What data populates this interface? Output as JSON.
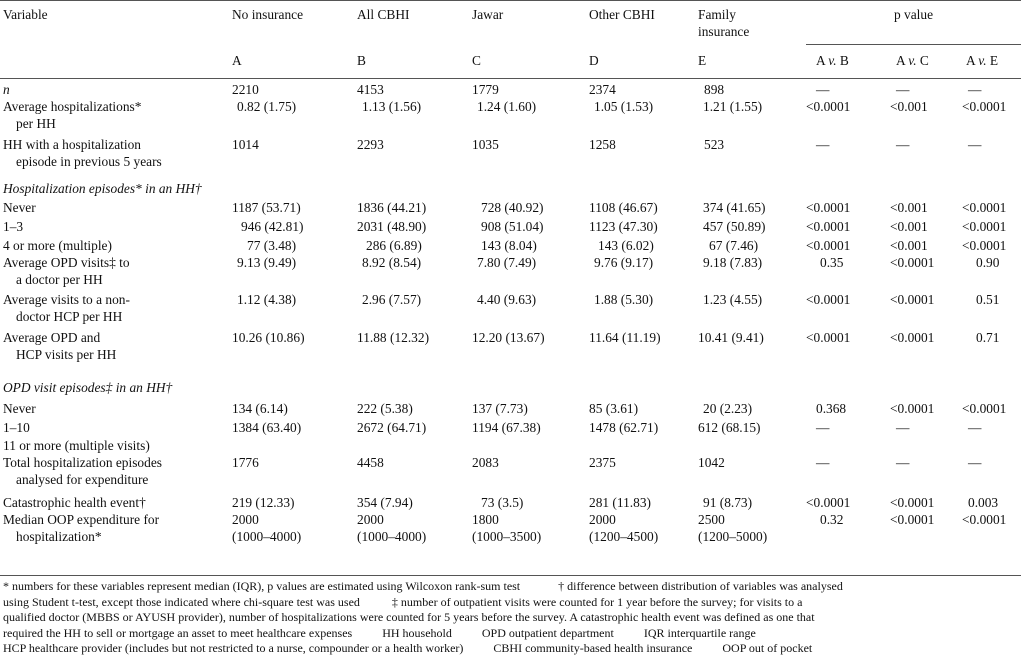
{
  "header": {
    "variable": "Variable",
    "no_ins": "No insurance",
    "all_cbhi": "All CBHI",
    "jawar": "Jawar",
    "other_cbhi": "Other CBHI",
    "family_ins_1": "Family",
    "family_ins_2": "insurance",
    "pvalue": "p value",
    "letters": [
      "A",
      "B",
      "C",
      "D",
      "E"
    ],
    "cmp": [
      [
        "A ",
        "v.",
        " B"
      ],
      [
        "A ",
        "v.",
        " C"
      ],
      [
        "A ",
        "v.",
        " E"
      ]
    ]
  },
  "rows": {
    "n": {
      "label": "n",
      "a": "2210",
      "b": "4153",
      "c": "1779",
      "d": "2374",
      "e": "898",
      "p1": "—",
      "p2": "—",
      "p3": "—"
    },
    "avg_hosp": {
      "l1": "Average hospitalizations*",
      "l2": "per HH",
      "a": "0.82 (1.75)",
      "b": "1.13 (1.56)",
      "c": "1.24 (1.60)",
      "d": "1.05 (1.53)",
      "e": "1.21 (1.55)",
      "p1": "<0.0001",
      "p2": "<0.001",
      "p3": "<0.0001"
    },
    "hh_hosp": {
      "l1": "HH with a hospitalization",
      "l2": "episode in previous 5 years",
      "a": "1014",
      "b": "2293",
      "c": "1035",
      "d": "1258",
      "e": "523",
      "p1": "—",
      "p2": "—",
      "p3": "—"
    },
    "sec1": "Hospitalization episodes* in an HH†",
    "never1": {
      "label": "Never",
      "a": "1187 (53.71)",
      "b": "1836 (44.21)",
      "c": "728 (40.92)",
      "d": "1108 (46.67)",
      "e": "374 (41.65)",
      "p1": "<0.0001",
      "p2": "<0.001",
      "p3": "<0.0001"
    },
    "r13": {
      "label": "1–3",
      "a": "946 (42.81)",
      "b": "2031 (48.90)",
      "c": "908 (51.04)",
      "d": "1123 (47.30)",
      "e": "457 (50.89)",
      "p1": "<0.0001",
      "p2": "<0.001",
      "p3": "<0.0001"
    },
    "r4": {
      "label": "4 or more (multiple)",
      "a": "77 (3.48)",
      "b": "286 (6.89)",
      "c": "143 (8.04)",
      "d": "143 (6.02)",
      "e": "67 (7.46)",
      "p1": "<0.0001",
      "p2": "<0.001",
      "p3": "<0.0001"
    },
    "avg_opd": {
      "l1": "Average OPD visits‡ to",
      "l2": "a doctor per HH",
      "a": "9.13 (9.49)",
      "b": "8.92 (8.54)",
      "c": "7.80 (7.49)",
      "d": "9.76 (9.17)",
      "e": "9.18 (7.83)",
      "p1": "0.35",
      "p2": "<0.0001",
      "p3": "0.90"
    },
    "avg_hcp": {
      "l1": "Average visits to a non-",
      "l2": "doctor HCP per HH",
      "a": "1.12 (4.38)",
      "b": "2.96 (7.57)",
      "c": "4.40 (9.63)",
      "d": "1.88 (5.30)",
      "e": "1.23 (4.55)",
      "p1": "<0.0001",
      "p2": "<0.0001",
      "p3": "0.51"
    },
    "avg_both": {
      "l1": "Average OPD and",
      "l2": "HCP visits per HH",
      "a": "10.26 (10.86)",
      "b": "11.88 (12.32)",
      "c": "12.20 (13.67)",
      "d": "11.64 (11.19)",
      "e": "10.41 (9.41)",
      "p1": "<0.0001",
      "p2": "<0.0001",
      "p3": "0.71"
    },
    "sec2": "OPD visit episodes‡ in an HH†",
    "never2": {
      "label": "Never",
      "a": "134 (6.14)",
      "b": "222 (5.38)",
      "c": "137 (7.73)",
      "d": "85 (3.61)",
      "e": "20 (2.23)",
      "p1": "0.368",
      "p2": "<0.0001",
      "p3": "<0.0001"
    },
    "r110": {
      "label": "1–10",
      "a": "1384 (63.40)",
      "b": "2672 (64.71)",
      "c": "1194 (67.38)",
      "d": "1478 (62.71)",
      "e": "612 (68.15)",
      "p1": "—",
      "p2": "—",
      "p3": "—"
    },
    "r11": {
      "label": "11 or more (multiple visits)"
    },
    "total": {
      "l1": "Total hospitalization episodes",
      "l2": "analysed for expenditure",
      "a": "1776",
      "b": "4458",
      "c": "2083",
      "d": "2375",
      "e": "1042",
      "p1": "—",
      "p2": "—",
      "p3": "—"
    },
    "cat": {
      "label": "Catastrophic health event†",
      "a": "219 (12.33)",
      "b": "354 (7.94)",
      "c": "73 (3.5)",
      "d": "281 (11.83)",
      "e": "91 (8.73)",
      "p1": "<0.0001",
      "p2": "<0.0001",
      "p3": "0.003"
    },
    "oop": {
      "l1": "Median OOP expenditure for",
      "l2": "hospitalization*",
      "a1": "2000",
      "a2": "(1000–4000)",
      "b1": "2000",
      "b2": "(1000–4000)",
      "c1": "1800",
      "c2": "(1000–3500)",
      "d1": "2000",
      "d2": "(1200–4500)",
      "e1": "2500",
      "e2": "(1200–5000)",
      "p1": "0.32",
      "p2": "<0.0001",
      "p3": "<0.0001"
    }
  },
  "notes": {
    "l1a": "* numbers for these variables represent median (IQR), p values are estimated using Wilcoxon rank-sum test",
    "l1b": "† difference between distribution of variables was analysed",
    "l2a": "using Student t-test, except those indicated where chi-square test was used",
    "l2b": "‡ number of outpatient visits were counted for 1 year before the survey; for visits to a",
    "l3": "qualified doctor (MBBS or AYUSH provider), number of hospitalizations were counted for 5 years before the survey. A catastrophic health event was defined as one that",
    "l4a": "required the HH to sell or mortgage an asset to meet healthcare expenses",
    "l4b": "HH household",
    "l4c": "OPD outpatient department",
    "l4d": "IQR interquartile range",
    "l5a": "HCP healthcare provider (includes but not restricted to a nurse, compounder or a health worker)",
    "l5b": "CBHI community-based health insurance",
    "l5c": "OOP out of pocket"
  }
}
